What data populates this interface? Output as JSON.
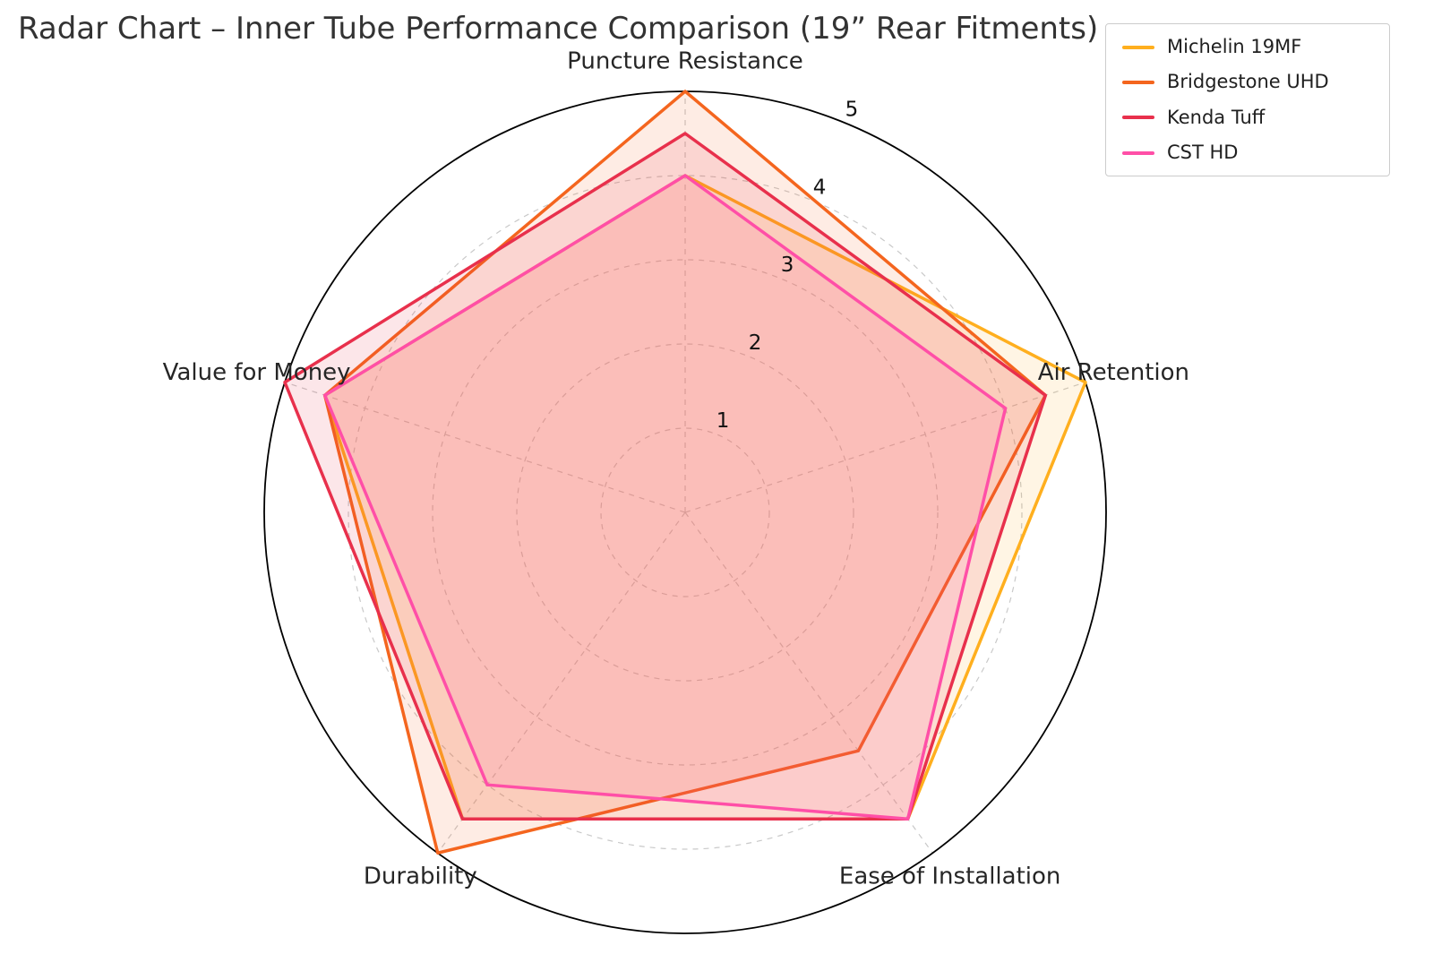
{
  "title": "Radar Chart – Inner Tube Performance Comparison (19” Rear Fitments)",
  "chart_data": {
    "type": "radar",
    "categories": [
      "Puncture Resistance",
      "Air Retention",
      "Ease of Installation",
      "Durability",
      "Value for Money"
    ],
    "r_ticks": [
      1,
      2,
      3,
      4,
      5
    ],
    "r_max": 5,
    "grid": "dashed-circles-and-spokes",
    "legend_position": "top-right",
    "series": [
      {
        "name": "Michelin 19MF",
        "color": "#FFAF1E",
        "values": [
          4.0,
          5.0,
          4.5,
          4.5,
          4.5
        ]
      },
      {
        "name": "Bridgestone UHD",
        "color": "#F4651E",
        "values": [
          5.0,
          4.5,
          3.5,
          5.0,
          4.5
        ]
      },
      {
        "name": "Kenda Tuff",
        "color": "#E8304C",
        "values": [
          4.5,
          4.5,
          4.5,
          4.5,
          5.0
        ]
      },
      {
        "name": "CST HD",
        "color": "#FF4FA7",
        "values": [
          4.0,
          4.0,
          4.5,
          4.0,
          4.5
        ]
      }
    ],
    "style": {
      "outer_ring_color": "#000000",
      "grid_color": "#c9c9c9",
      "tick_label_color": "#111111",
      "axis_label_color": "#262626",
      "fill_opacity": 0.12
    }
  }
}
